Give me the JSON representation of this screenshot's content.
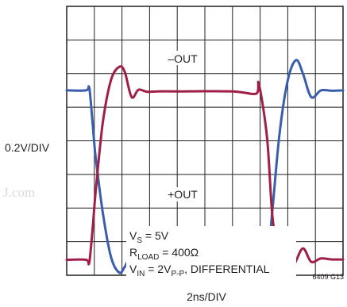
{
  "chart_data": {
    "type": "line",
    "xlabel": "2ns/DIV",
    "ylabel": "0.2V/DIV",
    "figure_id": "6409 G13",
    "watermark": "J.com",
    "grid": true,
    "x_divisions": 10,
    "y_divisions": 8,
    "xlim": [
      0,
      10
    ],
    "ylim": [
      0,
      8
    ],
    "trace_labels": [
      "–OUT",
      "+OUT"
    ],
    "annotations": {
      "vs": {
        "main": "V",
        "sub": "S",
        "rest": " = 5V"
      },
      "rload": {
        "main": "R",
        "sub": "LOAD",
        "rest": " = 400Ω"
      },
      "vin": {
        "main": "V",
        "sub1": "IN",
        "mid": " = 2V",
        "sub2": "P-P",
        "rest": ", DIFFERENTIAL"
      }
    },
    "series": [
      {
        "color": "#3a5eab",
        "x": [
          0,
          0.7,
          0.8,
          0.85,
          0.95,
          1.05,
          1.3,
          1.6,
          1.9,
          2.1,
          2.3,
          2.6,
          2.9,
          3.3,
          4,
          6,
          6.9,
          7.25,
          7.45,
          7.7,
          8.0,
          8.3,
          8.55,
          8.85,
          9.2,
          9.6,
          10
        ],
        "y": [
          5.5,
          5.5,
          5.62,
          5.35,
          4.4,
          3.5,
          1.9,
          0.55,
          0.08,
          0.25,
          0.52,
          0.38,
          0.47,
          0.46,
          0.46,
          0.46,
          0.5,
          0.45,
          2.0,
          4.2,
          5.8,
          6.4,
          6.0,
          5.3,
          5.5,
          5.49,
          5.5
        ]
      },
      {
        "color": "#a01f47",
        "x": [
          0,
          0.7,
          0.8,
          0.85,
          0.95,
          1.05,
          1.3,
          1.6,
          1.9,
          2.1,
          2.35,
          2.6,
          2.9,
          3.3,
          4,
          6,
          6.85,
          6.95,
          7.25,
          7.45,
          7.7,
          7.95,
          8.25,
          8.55,
          8.85,
          9.2,
          9.6,
          10
        ],
        "y": [
          0.46,
          0.46,
          0.33,
          0.6,
          1.5,
          2.5,
          4.5,
          5.8,
          6.2,
          6.05,
          5.3,
          5.52,
          5.46,
          5.47,
          5.47,
          5.47,
          5.4,
          5.7,
          4.1,
          1.7,
          0.6,
          0.05,
          0.35,
          0.8,
          0.4,
          0.5,
          0.47,
          0.47
        ]
      }
    ]
  }
}
